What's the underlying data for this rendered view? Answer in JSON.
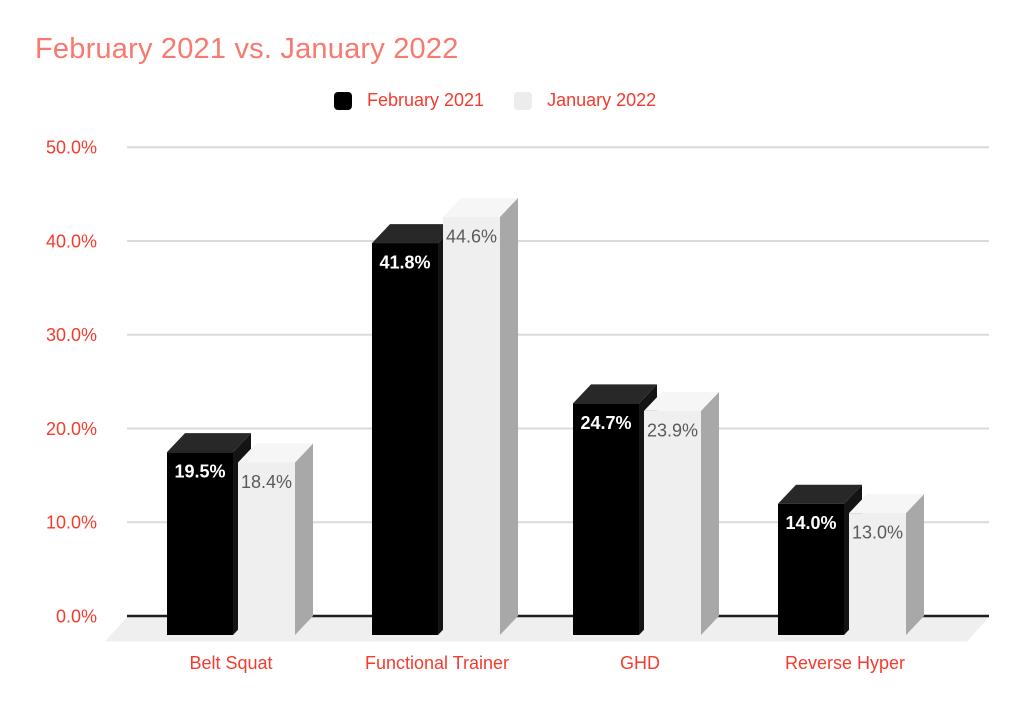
{
  "chart": {
    "title": "February 2021 vs. January 2022",
    "title_color": "#f8796e",
    "label_color": "#f43b2e",
    "background_color": "#ffffff",
    "gridline_color": "#dadada",
    "baseline_color": "#1e1e1e",
    "floor_color": "#efefef"
  },
  "legend": {
    "position": "top",
    "items": [
      {
        "label": "February 2021",
        "color": "#000000"
      },
      {
        "label": "January 2022",
        "color": "#ececec"
      }
    ]
  },
  "chart_data": {
    "type": "bar",
    "style": "3d-column",
    "title": "February 2021 vs. January 2022",
    "categories": [
      "Belt Squat",
      "Functional Trainer",
      "GHD",
      "Reverse Hyper"
    ],
    "series": [
      {
        "name": "February 2021",
        "color": "#000000",
        "color_top": "#282828",
        "color_side": "#141414",
        "values": [
          19.5,
          41.8,
          24.7,
          14.0
        ],
        "data_labels": [
          "19.5%",
          "41.8%",
          "24.7%",
          "14.0%"
        ],
        "data_label_color": "#ffffff"
      },
      {
        "name": "January 2022",
        "color": "#efefef",
        "color_top": "#f6f6f6",
        "color_side": "#a8a8a8",
        "values": [
          18.4,
          44.6,
          23.9,
          13.0
        ],
        "data_labels": [
          "18.4%",
          "44.6%",
          "23.9%",
          "13.0%"
        ],
        "data_label_color": "#5a5a5a"
      }
    ],
    "xlabel": "",
    "ylabel": "",
    "ylim": [
      0,
      50
    ],
    "yticks": [
      {
        "value": 0,
        "label": "0.0%"
      },
      {
        "value": 10,
        "label": "10.0%"
      },
      {
        "value": 20,
        "label": "20.0%"
      },
      {
        "value": 30,
        "label": "30.0%"
      },
      {
        "value": 40,
        "label": "40.0%"
      },
      {
        "value": 50,
        "label": "50.0%"
      }
    ],
    "grid": true,
    "legend_position": "top"
  }
}
